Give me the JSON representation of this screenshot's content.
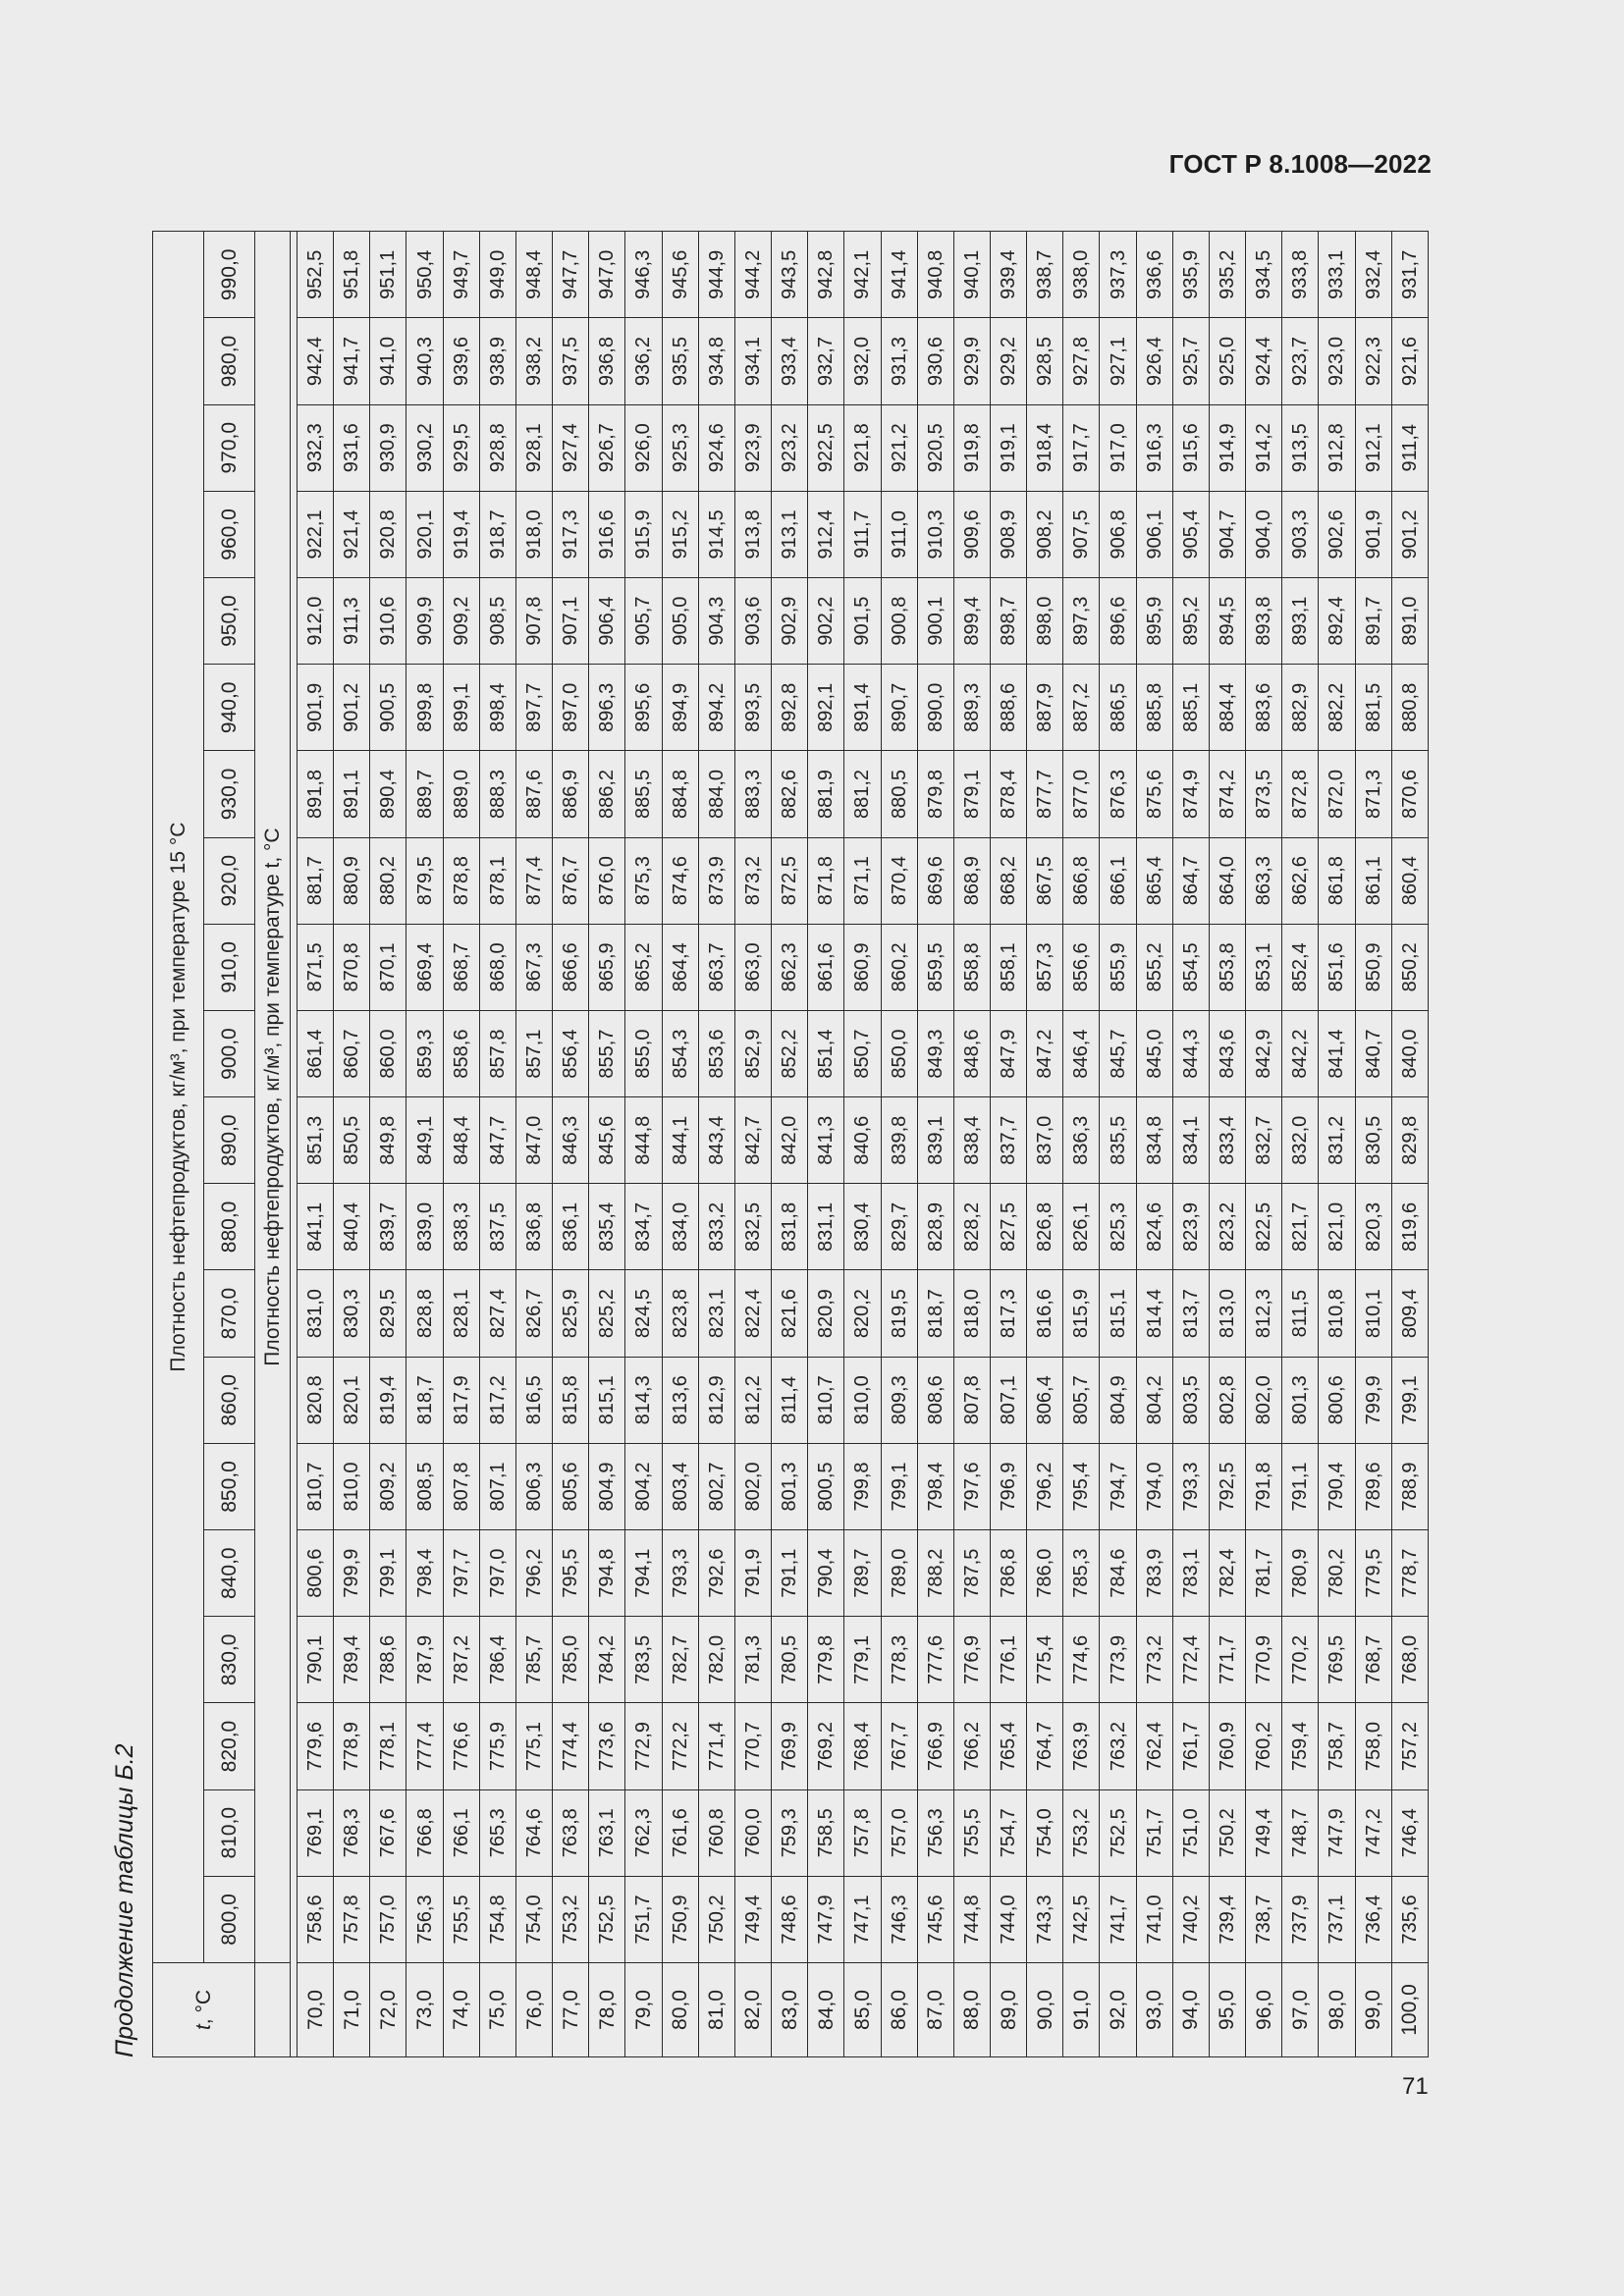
{
  "header": {
    "standard": "ГОСТ Р 8.1008—2022",
    "page_number": "71"
  },
  "caption": "Продолжение таблицы Б.2",
  "table": {
    "t_header": "t, °C",
    "header_top": "Плотность нефтепродуктов, кг/м³, при температуре 15 °С",
    "header_bottom": "Плотность нефтепродуктов, кг/м³, при температуре t, °С",
    "columns": [
      "800,0",
      "810,0",
      "820,0",
      "830,0",
      "840,0",
      "850,0",
      "860,0",
      "870,0",
      "880,0",
      "890,0",
      "900,0",
      "910,0",
      "920,0",
      "930,0",
      "940,0",
      "950,0",
      "960,0",
      "970,0",
      "980,0",
      "990,0"
    ],
    "rows": [
      {
        "t": "70,0",
        "v": [
          "758,6",
          "769,1",
          "779,6",
          "790,1",
          "800,6",
          "810,7",
          "820,8",
          "831,0",
          "841,1",
          "851,3",
          "861,4",
          "871,5",
          "881,7",
          "891,8",
          "901,9",
          "912,0",
          "922,1",
          "932,3",
          "942,4",
          "952,5"
        ]
      },
      {
        "t": "71,0",
        "v": [
          "757,8",
          "768,3",
          "778,9",
          "789,4",
          "799,9",
          "810,0",
          "820,1",
          "830,3",
          "840,4",
          "850,5",
          "860,7",
          "870,8",
          "880,9",
          "891,1",
          "901,2",
          "911,3",
          "921,4",
          "931,6",
          "941,7",
          "951,8"
        ]
      },
      {
        "t": "72,0",
        "v": [
          "757,0",
          "767,6",
          "778,1",
          "788,6",
          "799,1",
          "809,2",
          "819,4",
          "829,5",
          "839,7",
          "849,8",
          "860,0",
          "870,1",
          "880,2",
          "890,4",
          "900,5",
          "910,6",
          "920,8",
          "930,9",
          "941,0",
          "951,1"
        ]
      },
      {
        "t": "73,0",
        "v": [
          "756,3",
          "766,8",
          "777,4",
          "787,9",
          "798,4",
          "808,5",
          "818,7",
          "828,8",
          "839,0",
          "849,1",
          "859,3",
          "869,4",
          "879,5",
          "889,7",
          "899,8",
          "909,9",
          "920,1",
          "930,2",
          "940,3",
          "950,4"
        ]
      },
      {
        "t": "74,0",
        "v": [
          "755,5",
          "766,1",
          "776,6",
          "787,2",
          "797,7",
          "807,8",
          "817,9",
          "828,1",
          "838,3",
          "848,4",
          "858,6",
          "868,7",
          "878,8",
          "889,0",
          "899,1",
          "909,2",
          "919,4",
          "929,5",
          "939,6",
          "949,7"
        ]
      },
      {
        "t": "75,0",
        "v": [
          "754,8",
          "765,3",
          "775,9",
          "786,4",
          "797,0",
          "807,1",
          "817,2",
          "827,4",
          "837,5",
          "847,7",
          "857,8",
          "868,0",
          "878,1",
          "888,3",
          "898,4",
          "908,5",
          "918,7",
          "928,8",
          "938,9",
          "949,0"
        ]
      },
      {
        "t": "76,0",
        "v": [
          "754,0",
          "764,6",
          "775,1",
          "785,7",
          "796,2",
          "806,3",
          "816,5",
          "826,7",
          "836,8",
          "847,0",
          "857,1",
          "867,3",
          "877,4",
          "887,6",
          "897,7",
          "907,8",
          "918,0",
          "928,1",
          "938,2",
          "948,4"
        ]
      },
      {
        "t": "77,0",
        "v": [
          "753,2",
          "763,8",
          "774,4",
          "785,0",
          "795,5",
          "805,6",
          "815,8",
          "825,9",
          "836,1",
          "846,3",
          "856,4",
          "866,6",
          "876,7",
          "886,9",
          "897,0",
          "907,1",
          "917,3",
          "927,4",
          "937,5",
          "947,7"
        ]
      },
      {
        "t": "78,0",
        "v": [
          "752,5",
          "763,1",
          "773,6",
          "784,2",
          "794,8",
          "804,9",
          "815,1",
          "825,2",
          "835,4",
          "845,6",
          "855,7",
          "865,9",
          "876,0",
          "886,2",
          "896,3",
          "906,4",
          "916,6",
          "926,7",
          "936,8",
          "947,0"
        ]
      },
      {
        "t": "79,0",
        "v": [
          "751,7",
          "762,3",
          "772,9",
          "783,5",
          "794,1",
          "804,2",
          "814,3",
          "824,5",
          "834,7",
          "844,8",
          "855,0",
          "865,2",
          "875,3",
          "885,5",
          "895,6",
          "905,7",
          "915,9",
          "926,0",
          "936,2",
          "946,3"
        ]
      },
      {
        "t": "80,0",
        "v": [
          "750,9",
          "761,6",
          "772,2",
          "782,7",
          "793,3",
          "803,4",
          "813,6",
          "823,8",
          "834,0",
          "844,1",
          "854,3",
          "864,4",
          "874,6",
          "884,8",
          "894,9",
          "905,0",
          "915,2",
          "925,3",
          "935,5",
          "945,6"
        ]
      },
      {
        "t": "81,0",
        "v": [
          "750,2",
          "760,8",
          "771,4",
          "782,0",
          "792,6",
          "802,7",
          "812,9",
          "823,1",
          "833,2",
          "843,4",
          "853,6",
          "863,7",
          "873,9",
          "884,0",
          "894,2",
          "904,3",
          "914,5",
          "924,6",
          "934,8",
          "944,9"
        ]
      },
      {
        "t": "82,0",
        "v": [
          "749,4",
          "760,0",
          "770,7",
          "781,3",
          "791,9",
          "802,0",
          "812,2",
          "822,4",
          "832,5",
          "842,7",
          "852,9",
          "863,0",
          "873,2",
          "883,3",
          "893,5",
          "903,6",
          "913,8",
          "923,9",
          "934,1",
          "944,2"
        ]
      },
      {
        "t": "83,0",
        "v": [
          "748,6",
          "759,3",
          "769,9",
          "780,5",
          "791,1",
          "801,3",
          "811,4",
          "821,6",
          "831,8",
          "842,0",
          "852,2",
          "862,3",
          "872,5",
          "882,6",
          "892,8",
          "902,9",
          "913,1",
          "923,2",
          "933,4",
          "943,5"
        ]
      },
      {
        "t": "84,0",
        "v": [
          "747,9",
          "758,5",
          "769,2",
          "779,8",
          "790,4",
          "800,5",
          "810,7",
          "820,9",
          "831,1",
          "841,3",
          "851,4",
          "861,6",
          "871,8",
          "881,9",
          "892,1",
          "902,2",
          "912,4",
          "922,5",
          "932,7",
          "942,8"
        ]
      },
      {
        "t": "85,0",
        "v": [
          "747,1",
          "757,8",
          "768,4",
          "779,1",
          "789,7",
          "799,8",
          "810,0",
          "820,2",
          "830,4",
          "840,6",
          "850,7",
          "860,9",
          "871,1",
          "881,2",
          "891,4",
          "901,5",
          "911,7",
          "921,8",
          "932,0",
          "942,1"
        ]
      },
      {
        "t": "86,0",
        "v": [
          "746,3",
          "757,0",
          "767,7",
          "778,3",
          "789,0",
          "799,1",
          "809,3",
          "819,5",
          "829,7",
          "839,8",
          "850,0",
          "860,2",
          "870,4",
          "880,5",
          "890,7",
          "900,8",
          "911,0",
          "921,2",
          "931,3",
          "941,4"
        ]
      },
      {
        "t": "87,0",
        "v": [
          "745,6",
          "756,3",
          "766,9",
          "777,6",
          "788,2",
          "798,4",
          "808,6",
          "818,7",
          "828,9",
          "839,1",
          "849,3",
          "859,5",
          "869,6",
          "879,8",
          "890,0",
          "900,1",
          "910,3",
          "920,5",
          "930,6",
          "940,8"
        ]
      },
      {
        "t": "88,0",
        "v": [
          "744,8",
          "755,5",
          "766,2",
          "776,9",
          "787,5",
          "797,6",
          "807,8",
          "818,0",
          "828,2",
          "838,4",
          "848,6",
          "858,8",
          "868,9",
          "879,1",
          "889,3",
          "899,4",
          "909,6",
          "919,8",
          "929,9",
          "940,1"
        ]
      },
      {
        "t": "89,0",
        "v": [
          "744,0",
          "754,7",
          "765,4",
          "776,1",
          "786,8",
          "796,9",
          "807,1",
          "817,3",
          "827,5",
          "837,7",
          "847,9",
          "858,1",
          "868,2",
          "878,4",
          "888,6",
          "898,7",
          "908,9",
          "919,1",
          "929,2",
          "939,4"
        ]
      },
      {
        "t": "90,0",
        "v": [
          "743,3",
          "754,0",
          "764,7",
          "775,4",
          "786,0",
          "796,2",
          "806,4",
          "816,6",
          "826,8",
          "837,0",
          "847,2",
          "857,3",
          "867,5",
          "877,7",
          "887,9",
          "898,0",
          "908,2",
          "918,4",
          "928,5",
          "938,7"
        ]
      },
      {
        "t": "91,0",
        "v": [
          "742,5",
          "753,2",
          "763,9",
          "774,6",
          "785,3",
          "795,4",
          "805,7",
          "815,9",
          "826,1",
          "836,3",
          "846,4",
          "856,6",
          "866,8",
          "877,0",
          "887,2",
          "897,3",
          "907,5",
          "917,7",
          "927,8",
          "938,0"
        ]
      },
      {
        "t": "92,0",
        "v": [
          "741,7",
          "752,5",
          "763,2",
          "773,9",
          "784,6",
          "794,7",
          "804,9",
          "815,1",
          "825,3",
          "835,5",
          "845,7",
          "855,9",
          "866,1",
          "876,3",
          "886,5",
          "896,6",
          "906,8",
          "917,0",
          "927,1",
          "937,3"
        ]
      },
      {
        "t": "93,0",
        "v": [
          "741,0",
          "751,7",
          "762,4",
          "773,2",
          "783,9",
          "794,0",
          "804,2",
          "814,4",
          "824,6",
          "834,8",
          "845,0",
          "855,2",
          "865,4",
          "875,6",
          "885,8",
          "895,9",
          "906,1",
          "916,3",
          "926,4",
          "936,6"
        ]
      },
      {
        "t": "94,0",
        "v": [
          "740,2",
          "751,0",
          "761,7",
          "772,4",
          "783,1",
          "793,3",
          "803,5",
          "813,7",
          "823,9",
          "834,1",
          "844,3",
          "854,5",
          "864,7",
          "874,9",
          "885,1",
          "895,2",
          "905,4",
          "915,6",
          "925,7",
          "935,9"
        ]
      },
      {
        "t": "95,0",
        "v": [
          "739,4",
          "750,2",
          "760,9",
          "771,7",
          "782,4",
          "792,5",
          "802,8",
          "813,0",
          "823,2",
          "833,4",
          "843,6",
          "853,8",
          "864,0",
          "874,2",
          "884,4",
          "894,5",
          "904,7",
          "914,9",
          "925,0",
          "935,2"
        ]
      },
      {
        "t": "96,0",
        "v": [
          "738,7",
          "749,4",
          "760,2",
          "770,9",
          "781,7",
          "791,8",
          "802,0",
          "812,3",
          "822,5",
          "832,7",
          "842,9",
          "853,1",
          "863,3",
          "873,5",
          "883,6",
          "893,8",
          "904,0",
          "914,2",
          "924,4",
          "934,5"
        ]
      },
      {
        "t": "97,0",
        "v": [
          "737,9",
          "748,7",
          "759,4",
          "770,2",
          "780,9",
          "791,1",
          "801,3",
          "811,5",
          "821,7",
          "832,0",
          "842,2",
          "852,4",
          "862,6",
          "872,8",
          "882,9",
          "893,1",
          "903,3",
          "913,5",
          "923,7",
          "933,8"
        ]
      },
      {
        "t": "98,0",
        "v": [
          "737,1",
          "747,9",
          "758,7",
          "769,5",
          "780,2",
          "790,4",
          "800,6",
          "810,8",
          "821,0",
          "831,2",
          "841,4",
          "851,6",
          "861,8",
          "872,0",
          "882,2",
          "892,4",
          "902,6",
          "912,8",
          "923,0",
          "933,1"
        ]
      },
      {
        "t": "99,0",
        "v": [
          "736,4",
          "747,2",
          "758,0",
          "768,7",
          "779,5",
          "789,6",
          "799,9",
          "810,1",
          "820,3",
          "830,5",
          "840,7",
          "850,9",
          "861,1",
          "871,3",
          "881,5",
          "891,7",
          "901,9",
          "912,1",
          "922,3",
          "932,4"
        ]
      },
      {
        "t": "100,0",
        "v": [
          "735,6",
          "746,4",
          "757,2",
          "768,0",
          "778,7",
          "788,9",
          "799,1",
          "809,4",
          "819,6",
          "829,8",
          "840,0",
          "850,2",
          "860,4",
          "870,6",
          "880,8",
          "891,0",
          "901,2",
          "911,4",
          "921,6",
          "931,7"
        ]
      }
    ]
  }
}
